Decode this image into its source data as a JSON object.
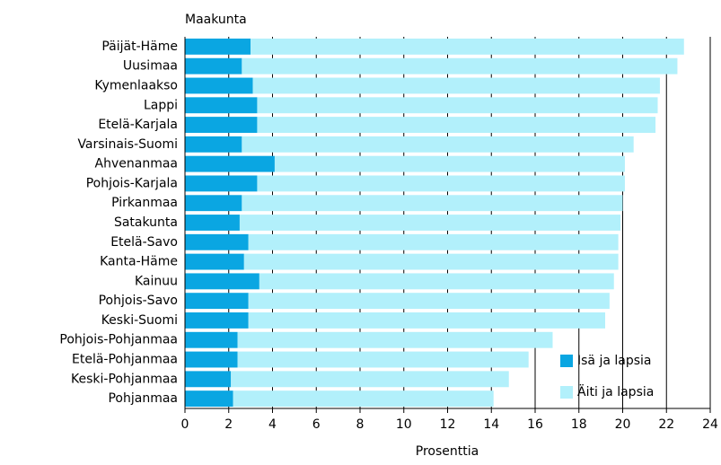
{
  "chart_data": {
    "type": "stacked-barh",
    "title": "Maakunta",
    "x_label": "Prosenttia",
    "categories": [
      "Päijät-Häme",
      "Uusimaa",
      "Kymenlaakso",
      "Lappi",
      "Etelä-Karjala",
      "Varsinais-Suomi",
      "Ahvenanmaa",
      "Pohjois-Karjala",
      "Pirkanmaa",
      "Satakunta",
      "Etelä-Savo",
      "Kanta-Häme",
      "Kainuu",
      "Pohjois-Savo",
      "Keski-Suomi",
      "Pohjois-Pohjanmaa",
      "Etelä-Pohjanmaa",
      "Keski-Pohjanmaa",
      "Pohjanmaa"
    ],
    "series": [
      {
        "name": "Isä ja lapsia",
        "color": "#0aa6e2",
        "values": [
          3.0,
          2.6,
          3.1,
          3.3,
          3.3,
          2.6,
          4.1,
          3.3,
          2.6,
          2.5,
          2.9,
          2.7,
          3.4,
          2.9,
          2.9,
          2.4,
          2.4,
          2.1,
          2.2
        ]
      },
      {
        "name": "Äiti ja lapsia",
        "color": "#b2f0fb",
        "values": [
          19.8,
          19.9,
          18.6,
          18.3,
          18.2,
          17.9,
          16.0,
          16.8,
          17.4,
          17.4,
          16.9,
          17.1,
          16.2,
          16.5,
          16.3,
          14.4,
          13.3,
          12.7,
          11.9
        ]
      }
    ],
    "xlim": [
      0,
      24
    ],
    "xticks": [
      0,
      2,
      4,
      6,
      8,
      10,
      12,
      14,
      16,
      18,
      20,
      22,
      24
    ],
    "grid": true,
    "legend": "lower right"
  }
}
